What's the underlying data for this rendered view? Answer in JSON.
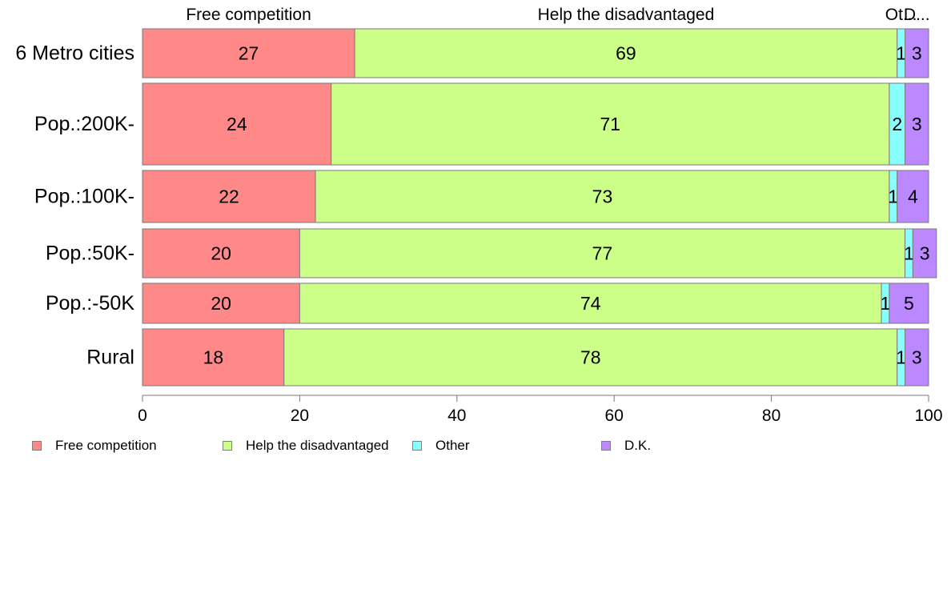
{
  "chart_data": {
    "type": "bar",
    "orientation": "horizontal",
    "stacked": true,
    "categories": [
      "6 Metro cities",
      "Pop.:200K-",
      "Pop.:100K-",
      "Pop.:50K-",
      "Pop.:-50K",
      "Rural"
    ],
    "series": [
      {
        "name": "Free competition",
        "color": "#ff8888",
        "values": [
          27,
          24,
          22,
          20,
          20,
          18
        ]
      },
      {
        "name": "Help the disadvantaged",
        "color": "#ccff88",
        "values": [
          69,
          71,
          73,
          77,
          74,
          78
        ]
      },
      {
        "name": "Other",
        "color": "#88ffff",
        "values": [
          1,
          2,
          1,
          1,
          1,
          1
        ]
      },
      {
        "name": "D.K.",
        "color": "#bb88ff",
        "values": [
          3,
          3,
          4,
          3,
          5,
          3
        ]
      }
    ],
    "top_labels": [
      "Free competition",
      "Help the disadvantaged",
      "Ot...",
      "D..."
    ],
    "x_ticks": [
      "0",
      "20",
      "40",
      "60",
      "80",
      "100"
    ],
    "xlim": [
      0,
      100
    ],
    "grid": false,
    "legend_position": "bottom"
  },
  "legend": {
    "items": [
      {
        "label": "Free competition",
        "color": "#ff8888"
      },
      {
        "label": "Help the disadvantaged",
        "color": "#ccff88"
      },
      {
        "label": "Other",
        "color": "#88ffff"
      },
      {
        "label": "D.K.",
        "color": "#bb88ff"
      }
    ]
  }
}
